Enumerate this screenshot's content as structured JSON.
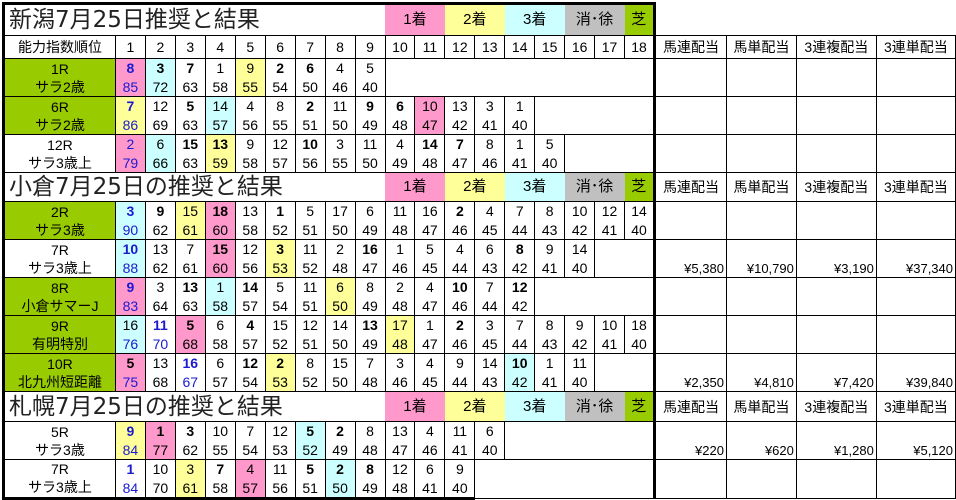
{
  "column_header_label": "能力指数順位",
  "column_numbers": [
    "1",
    "2",
    "3",
    "4",
    "5",
    "6",
    "7",
    "8",
    "9",
    "10",
    "11",
    "12",
    "13",
    "14",
    "15",
    "16",
    "17",
    "18"
  ],
  "legend": {
    "first": "1着",
    "second": "2着",
    "third": "3着",
    "scratch": "消･徐",
    "turf": "芝"
  },
  "payout_headers": [
    "馬連配当",
    "馬単配当",
    "3連複配当",
    "3連単配当"
  ],
  "colors": {
    "first": "#ff99cc",
    "second": "#ffff99",
    "third": "#ccffff",
    "scratch": "#c0c0c0",
    "turf": "#99cc00"
  },
  "sections": [
    {
      "title": "新潟7月25日推奨と結果",
      "payout_header_in_title": false,
      "races": [
        {
          "race": "1R",
          "class": "サラ2歳",
          "turf": true,
          "payouts": [
            "",
            "",
            "",
            ""
          ],
          "horses": [
            {
              "no": "8",
              "idx": "85",
              "bold": true,
              "blue": true,
              "result": "1"
            },
            {
              "no": "3",
              "idx": "72",
              "bold": true,
              "result": "3"
            },
            {
              "no": "7",
              "idx": "63",
              "bold": true
            },
            {
              "no": "1",
              "idx": "58"
            },
            {
              "no": "9",
              "idx": "55",
              "result": "2"
            },
            {
              "no": "2",
              "idx": "54",
              "bold": true
            },
            {
              "no": "6",
              "idx": "50",
              "bold": true
            },
            {
              "no": "4",
              "idx": "46"
            },
            {
              "no": "5",
              "idx": "40"
            }
          ]
        },
        {
          "race": "6R",
          "class": "サラ2歳",
          "turf": true,
          "payouts": [
            "",
            "",
            "",
            ""
          ],
          "horses": [
            {
              "no": "7",
              "idx": "86",
              "bold": true,
              "blue": true,
              "result": "2"
            },
            {
              "no": "12",
              "idx": "69"
            },
            {
              "no": "5",
              "idx": "63",
              "bold": true
            },
            {
              "no": "14",
              "idx": "57",
              "result": "3"
            },
            {
              "no": "4",
              "idx": "56"
            },
            {
              "no": "8",
              "idx": "55"
            },
            {
              "no": "2",
              "idx": "51",
              "bold": true
            },
            {
              "no": "11",
              "idx": "50"
            },
            {
              "no": "9",
              "idx": "49",
              "bold": true
            },
            {
              "no": "6",
              "idx": "48",
              "bold": true
            },
            {
              "no": "10",
              "idx": "47",
              "result": "1"
            },
            {
              "no": "13",
              "idx": "42"
            },
            {
              "no": "3",
              "idx": "41"
            },
            {
              "no": "1",
              "idx": "40"
            }
          ]
        },
        {
          "race": "12R",
          "class": "サラ3歳上",
          "turf": false,
          "payouts": [
            "",
            "",
            "",
            ""
          ],
          "horses": [
            {
              "no": "2",
              "idx": "79",
              "blue": true,
              "result": "1"
            },
            {
              "no": "6",
              "idx": "66",
              "result": "3"
            },
            {
              "no": "15",
              "idx": "63",
              "bold": true
            },
            {
              "no": "13",
              "idx": "59",
              "bold": true,
              "result": "2"
            },
            {
              "no": "9",
              "idx": "58"
            },
            {
              "no": "12",
              "idx": "57"
            },
            {
              "no": "10",
              "idx": "56",
              "bold": true
            },
            {
              "no": "3",
              "idx": "55"
            },
            {
              "no": "11",
              "idx": "50"
            },
            {
              "no": "4",
              "idx": "49"
            },
            {
              "no": "14",
              "idx": "48",
              "bold": true
            },
            {
              "no": "7",
              "idx": "47",
              "bold": true
            },
            {
              "no": "8",
              "idx": "46"
            },
            {
              "no": "1",
              "idx": "41"
            },
            {
              "no": "5",
              "idx": "40"
            }
          ]
        }
      ]
    },
    {
      "title": "小倉7月25日の推奨と結果",
      "payout_header_in_title": true,
      "races": [
        {
          "race": "2R",
          "class": "サラ3歳",
          "turf": true,
          "payouts": [
            "",
            "",
            "",
            ""
          ],
          "horses": [
            {
              "no": "3",
              "idx": "90",
              "bold": true,
              "blue": true,
              "result": "3"
            },
            {
              "no": "9",
              "idx": "62",
              "bold": true
            },
            {
              "no": "15",
              "idx": "61",
              "result": "2"
            },
            {
              "no": "18",
              "idx": "60",
              "bold": true,
              "result": "1"
            },
            {
              "no": "13",
              "idx": "58"
            },
            {
              "no": "1",
              "idx": "52",
              "bold": true
            },
            {
              "no": "5",
              "idx": "51"
            },
            {
              "no": "17",
              "idx": "50"
            },
            {
              "no": "6",
              "idx": "49"
            },
            {
              "no": "11",
              "idx": "48"
            },
            {
              "no": "16",
              "idx": "47"
            },
            {
              "no": "2",
              "idx": "46",
              "bold": true
            },
            {
              "no": "4",
              "idx": "45"
            },
            {
              "no": "7",
              "idx": "44"
            },
            {
              "no": "8",
              "idx": "43"
            },
            {
              "no": "10",
              "idx": "42"
            },
            {
              "no": "12",
              "idx": "41"
            },
            {
              "no": "14",
              "idx": "40"
            }
          ]
        },
        {
          "race": "7R",
          "class": "サラ3歳上",
          "turf": false,
          "payouts": [
            "¥5,380",
            "¥10,790",
            "¥3,190",
            "¥37,340"
          ],
          "horses": [
            {
              "no": "10",
              "idx": "88",
              "bold": true,
              "blue": true,
              "result": "3"
            },
            {
              "no": "13",
              "idx": "62"
            },
            {
              "no": "7",
              "idx": "61"
            },
            {
              "no": "15",
              "idx": "60",
              "bold": true,
              "result": "1"
            },
            {
              "no": "12",
              "idx": "56"
            },
            {
              "no": "3",
              "idx": "53",
              "bold": true,
              "result": "2"
            },
            {
              "no": "11",
              "idx": "52"
            },
            {
              "no": "2",
              "idx": "48"
            },
            {
              "no": "16",
              "idx": "47",
              "bold": true
            },
            {
              "no": "1",
              "idx": "46"
            },
            {
              "no": "5",
              "idx": "45"
            },
            {
              "no": "4",
              "idx": "44"
            },
            {
              "no": "6",
              "idx": "43"
            },
            {
              "no": "8",
              "idx": "42",
              "bold": true
            },
            {
              "no": "9",
              "idx": "41"
            },
            {
              "no": "14",
              "idx": "40"
            }
          ]
        },
        {
          "race": "8R",
          "class": "小倉サマーJ",
          "turf": true,
          "payouts": [
            "",
            "",
            "",
            ""
          ],
          "horses": [
            {
              "no": "9",
              "idx": "83",
              "bold": true,
              "blue": true,
              "result": "1"
            },
            {
              "no": "3",
              "idx": "64"
            },
            {
              "no": "13",
              "idx": "63",
              "bold": true
            },
            {
              "no": "1",
              "idx": "58",
              "result": "3"
            },
            {
              "no": "14",
              "idx": "57",
              "bold": true
            },
            {
              "no": "5",
              "idx": "54"
            },
            {
              "no": "11",
              "idx": "51"
            },
            {
              "no": "6",
              "idx": "50",
              "result": "2"
            },
            {
              "no": "8",
              "idx": "49"
            },
            {
              "no": "2",
              "idx": "48"
            },
            {
              "no": "4",
              "idx": "47"
            },
            {
              "no": "10",
              "idx": "46",
              "bold": true
            },
            {
              "no": "7",
              "idx": "44"
            },
            {
              "no": "12",
              "idx": "42",
              "bold": true
            }
          ]
        },
        {
          "race": "9R",
          "class": "有明特別",
          "turf": true,
          "payouts": [
            "",
            "",
            "",
            ""
          ],
          "horses": [
            {
              "no": "16",
              "idx": "76",
              "result": "3"
            },
            {
              "no": "11",
              "idx": "70",
              "bold": true,
              "blue": true
            },
            {
              "no": "5",
              "idx": "68",
              "bold": true,
              "result": "1"
            },
            {
              "no": "6",
              "idx": "58"
            },
            {
              "no": "4",
              "idx": "57",
              "bold": true
            },
            {
              "no": "15",
              "idx": "52"
            },
            {
              "no": "12",
              "idx": "51"
            },
            {
              "no": "14",
              "idx": "50"
            },
            {
              "no": "13",
              "idx": "49",
              "bold": true
            },
            {
              "no": "17",
              "idx": "48",
              "result": "2"
            },
            {
              "no": "1",
              "idx": "47"
            },
            {
              "no": "2",
              "idx": "46",
              "bold": true
            },
            {
              "no": "3",
              "idx": "45"
            },
            {
              "no": "7",
              "idx": "44"
            },
            {
              "no": "8",
              "idx": "43"
            },
            {
              "no": "9",
              "idx": "42"
            },
            {
              "no": "10",
              "idx": "41"
            },
            {
              "no": "18",
              "idx": "40"
            }
          ]
        },
        {
          "race": "10R",
          "class": "北九州短距離",
          "turf": true,
          "payouts": [
            "¥2,350",
            "¥4,810",
            "¥7,420",
            "¥39,840"
          ],
          "horses": [
            {
              "no": "5",
              "idx": "75",
              "bold": true,
              "result": "1"
            },
            {
              "no": "13",
              "idx": "68"
            },
            {
              "no": "16",
              "idx": "67",
              "bold": true,
              "blue": true
            },
            {
              "no": "6",
              "idx": "57"
            },
            {
              "no": "12",
              "idx": "54",
              "bold": true
            },
            {
              "no": "2",
              "idx": "53",
              "bold": true,
              "result": "2"
            },
            {
              "no": "8",
              "idx": "52"
            },
            {
              "no": "15",
              "idx": "50"
            },
            {
              "no": "7",
              "idx": "48"
            },
            {
              "no": "3",
              "idx": "46"
            },
            {
              "no": "4",
              "idx": "45"
            },
            {
              "no": "9",
              "idx": "44"
            },
            {
              "no": "14",
              "idx": "43"
            },
            {
              "no": "10",
              "idx": "42",
              "bold": true,
              "result": "3"
            },
            {
              "no": "1",
              "idx": "41"
            },
            {
              "no": "11",
              "idx": "40"
            }
          ]
        }
      ]
    },
    {
      "title": "札幌7月25日の推奨と結果",
      "payout_header_in_title": true,
      "races": [
        {
          "race": "5R",
          "class": "サラ3歳",
          "turf": false,
          "payouts": [
            "¥220",
            "¥620",
            "¥1,280",
            "¥5,120"
          ],
          "horses": [
            {
              "no": "9",
              "idx": "84",
              "bold": true,
              "blue": true,
              "result": "2"
            },
            {
              "no": "1",
              "idx": "77",
              "bold": true,
              "result": "1"
            },
            {
              "no": "3",
              "idx": "62",
              "bold": true
            },
            {
              "no": "10",
              "idx": "55"
            },
            {
              "no": "7",
              "idx": "54"
            },
            {
              "no": "12",
              "idx": "53"
            },
            {
              "no": "5",
              "idx": "52",
              "bold": true,
              "result": "3"
            },
            {
              "no": "2",
              "idx": "49",
              "bold": true
            },
            {
              "no": "8",
              "idx": "48"
            },
            {
              "no": "13",
              "idx": "47"
            },
            {
              "no": "4",
              "idx": "46"
            },
            {
              "no": "11",
              "idx": "41"
            },
            {
              "no": "6",
              "idx": "40"
            }
          ]
        },
        {
          "race": "7R",
          "class": "サラ3歳上",
          "turf": false,
          "payouts": [
            "",
            "",
            "",
            ""
          ],
          "horses": [
            {
              "no": "1",
              "idx": "84",
              "bold": true,
              "blue": true
            },
            {
              "no": "10",
              "idx": "70"
            },
            {
              "no": "3",
              "idx": "61",
              "result": "2"
            },
            {
              "no": "7",
              "idx": "58",
              "bold": true
            },
            {
              "no": "4",
              "idx": "57",
              "result": "1"
            },
            {
              "no": "11",
              "idx": "56"
            },
            {
              "no": "5",
              "idx": "51",
              "bold": true
            },
            {
              "no": "2",
              "idx": "50",
              "bold": true,
              "result": "3"
            },
            {
              "no": "8",
              "idx": "49",
              "bold": true
            },
            {
              "no": "12",
              "idx": "48"
            },
            {
              "no": "6",
              "idx": "41"
            },
            {
              "no": "9",
              "idx": "40"
            }
          ]
        }
      ]
    }
  ]
}
